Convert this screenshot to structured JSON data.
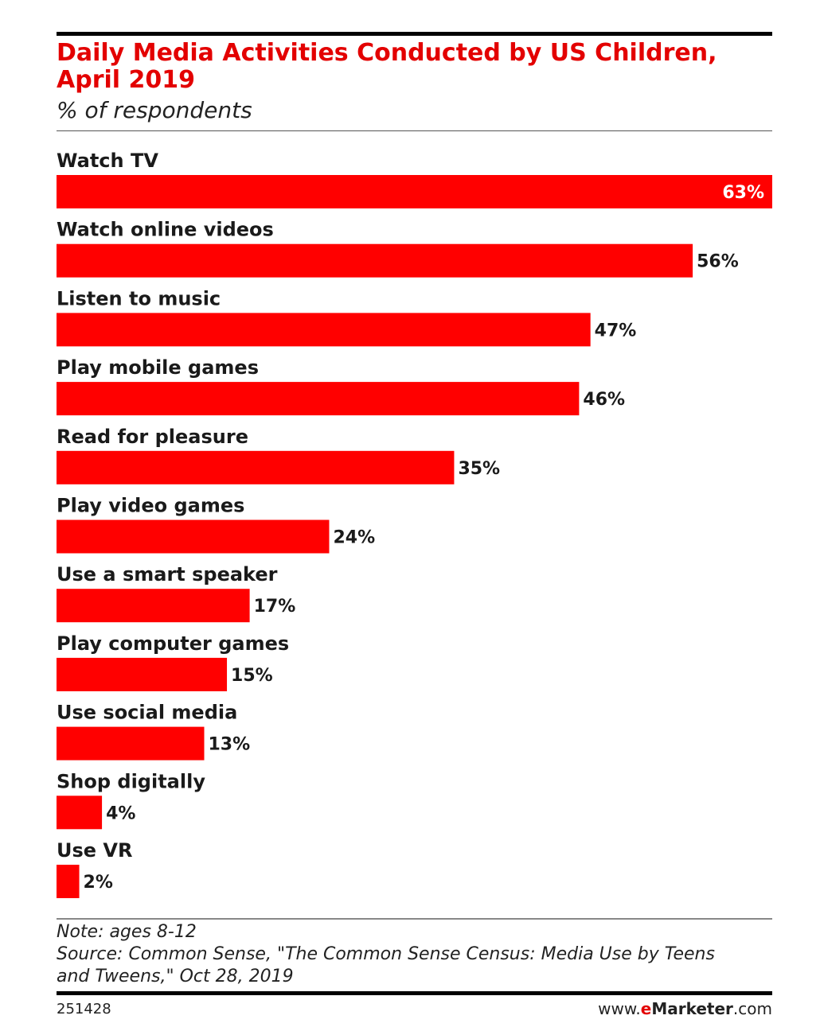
{
  "header": {
    "title_line1": "Daily Media Activities Conducted by US Children,",
    "title_line2": "April 2019",
    "subtitle": "% of respondents"
  },
  "colors": {
    "accent": "#e30000",
    "bar": "#ff0000",
    "text": "#1a1a1a"
  },
  "chart_data": {
    "type": "bar",
    "orientation": "horizontal",
    "categories": [
      "Watch TV",
      "Watch online videos",
      "Listen to music",
      "Play mobile games",
      "Read for pleasure",
      "Play video games",
      "Use a smart speaker",
      "Play computer games",
      "Use social media",
      "Shop digitally",
      "Use VR"
    ],
    "values": [
      63,
      56,
      47,
      46,
      35,
      24,
      17,
      15,
      13,
      4,
      2
    ],
    "value_labels": [
      "63%",
      "56%",
      "47%",
      "46%",
      "35%",
      "24%",
      "17%",
      "15%",
      "13%",
      "4%",
      "2%"
    ],
    "xlim": [
      0,
      63
    ],
    "grid": false,
    "legend": "none"
  },
  "footer": {
    "note": "Note: ages 8-12",
    "source_line1": "Source: Common Sense, \"The Common Sense Census: Media Use by Teens",
    "source_line2": "and Tweens,\" Oct 28, 2019",
    "chart_id": "251428",
    "brand_prefix": "www.",
    "brand_e": "e",
    "brand_name": "Marketer",
    "brand_suffix": ".com"
  }
}
